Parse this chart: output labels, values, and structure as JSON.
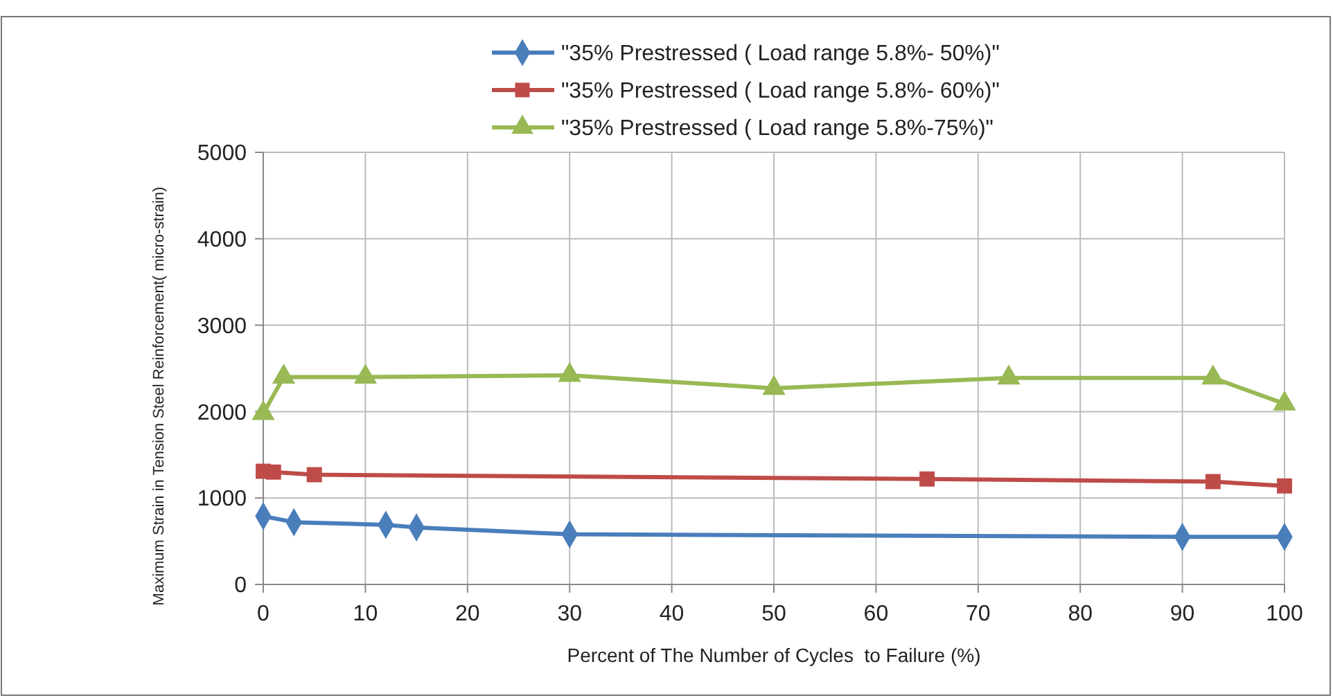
{
  "chart_data": {
    "type": "line",
    "xlabel": "Percent of The Number of Cycles  to Failure (%)",
    "ylabel": "Maximum Strain in Tension Steel Reinforcement( micro-strain)",
    "xlim": [
      0,
      100
    ],
    "xticks": [
      0,
      10,
      20,
      30,
      40,
      50,
      60,
      70,
      80,
      90,
      100
    ],
    "ylim": [
      0,
      5000
    ],
    "yticks": [
      0,
      1000,
      2000,
      3000,
      4000,
      5000
    ],
    "grid": true,
    "legend": "top",
    "series": [
      {
        "name": "\"35% Prestressed  ( Load range 5.8%- 50%)\"",
        "color": "#4a7ebb",
        "marker": "diamond",
        "x": [
          0,
          3,
          12,
          15,
          30,
          90,
          100
        ],
        "values": [
          790,
          720,
          690,
          660,
          580,
          550,
          550
        ]
      },
      {
        "name": "\"35% Prestressed  ( Load range 5.8%- 60%)\"",
        "color": "#be4b48",
        "marker": "square",
        "x": [
          0,
          1,
          5,
          65,
          93,
          100
        ],
        "values": [
          1310,
          1300,
          1270,
          1220,
          1190,
          1140
        ]
      },
      {
        "name": "\"35% Prestressed  ( Load range 5.8%-75%)\"",
        "color": "#98b954",
        "marker": "triangle",
        "x": [
          0,
          2,
          10,
          30,
          50,
          73,
          93,
          100
        ],
        "values": [
          1980,
          2400,
          2400,
          2420,
          2270,
          2390,
          2390,
          2090
        ]
      }
    ]
  }
}
